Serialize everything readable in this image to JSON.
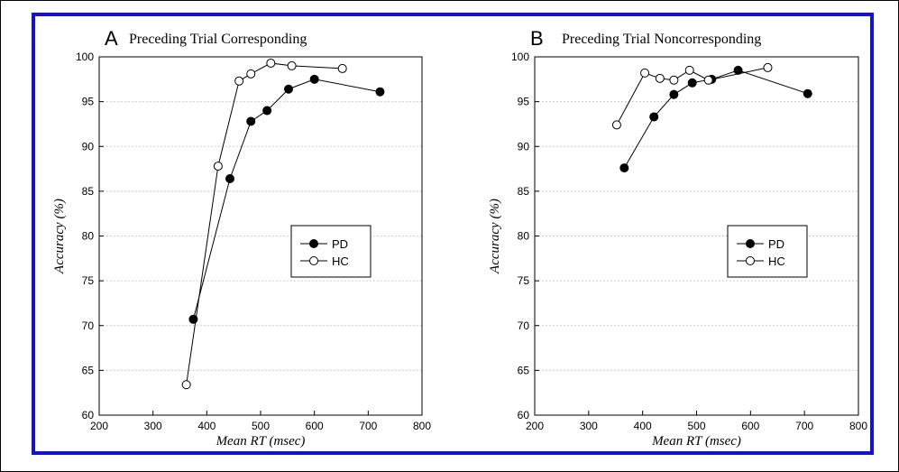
{
  "chart_data": [
    {
      "type": "line",
      "panel_letter": "A",
      "title": "Preceding Trial Corresponding",
      "xlabel": "Mean RT (msec)",
      "ylabel": "Accuracy (%)",
      "xlim": [
        200,
        800
      ],
      "ylim": [
        60,
        100
      ],
      "xticks": [
        "200",
        "300",
        "400",
        "500",
        "600",
        "700",
        "800"
      ],
      "yticks": [
        "60",
        "65",
        "70",
        "75",
        "80",
        "85",
        "90",
        "95",
        "100"
      ],
      "grid": "horizontal dotted",
      "legend_position": "center-right",
      "series": [
        {
          "name": "PD",
          "marker": "filled",
          "x": [
            375,
            443,
            482,
            512,
            552,
            600,
            722
          ],
          "y": [
            70.7,
            86.4,
            92.8,
            94.0,
            96.4,
            97.5,
            96.1
          ]
        },
        {
          "name": "HC",
          "marker": "open",
          "x": [
            362,
            421,
            460,
            482,
            519,
            558,
            652
          ],
          "y": [
            63.4,
            87.8,
            97.3,
            98.1,
            99.3,
            99.0,
            98.7
          ]
        }
      ]
    },
    {
      "type": "line",
      "panel_letter": "B",
      "title": "Preceding Trial Noncorresponding",
      "xlabel": "Mean RT (msec)",
      "ylabel": "Accuracy (%)",
      "xlim": [
        200,
        800
      ],
      "ylim": [
        60,
        100
      ],
      "xticks": [
        "200",
        "300",
        "400",
        "500",
        "600",
        "700",
        "800"
      ],
      "yticks": [
        "60",
        "65",
        "70",
        "75",
        "80",
        "85",
        "90",
        "95",
        "100"
      ],
      "grid": "horizontal dotted",
      "legend_position": "center-right",
      "series": [
        {
          "name": "PD",
          "marker": "filled",
          "x": [
            366,
            421,
            458,
            492,
            528,
            577,
            706
          ],
          "y": [
            87.6,
            93.3,
            95.8,
            97.1,
            97.5,
            98.5,
            95.9
          ]
        },
        {
          "name": "HC",
          "marker": "open",
          "x": [
            352,
            404,
            432,
            458,
            487,
            522,
            632
          ],
          "y": [
            92.4,
            98.2,
            97.6,
            97.4,
            98.5,
            97.4,
            98.8
          ]
        }
      ]
    }
  ],
  "colors": {
    "frame": "#1010e0",
    "gridline": "#bdbdbd",
    "ink": "#000000"
  }
}
